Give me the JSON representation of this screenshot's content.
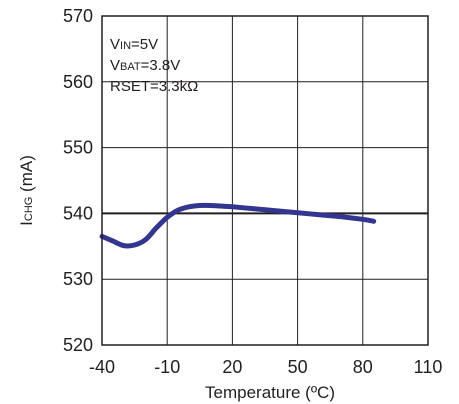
{
  "chart_data": {
    "type": "line",
    "title": "",
    "xlabel": "Temperature (ºC)",
    "ylabel": {
      "main": "I",
      "sub": "CHG",
      "rest": " (mA)"
    },
    "xlim": [
      -40,
      110
    ],
    "ylim": [
      520,
      570
    ],
    "xticks": [
      -40,
      -10,
      20,
      50,
      80,
      110
    ],
    "yticks": [
      520,
      530,
      540,
      550,
      560,
      570
    ],
    "grid": true,
    "annotations": [
      {
        "main": "V",
        "sub": "IN",
        "rest": "=5V"
      },
      {
        "main": "V",
        "sub": "BAT",
        "rest": "=3.8V"
      },
      {
        "main": "RSET=3.3kΩ",
        "sub": "",
        "rest": ""
      }
    ],
    "series": [
      {
        "color": "#33368f",
        "x": [
          -40,
          -35,
          -30,
          -25,
          -20,
          -15,
          -10,
          -5,
          0,
          5,
          10,
          20,
          30,
          40,
          50,
          60,
          70,
          80,
          85
        ],
        "y": [
          536.5,
          535.8,
          535.1,
          535.2,
          536.0,
          537.8,
          539.4,
          540.5,
          541.0,
          541.2,
          541.2,
          541.0,
          540.7,
          540.4,
          540.1,
          539.8,
          539.5,
          539.1,
          538.8
        ]
      }
    ]
  }
}
